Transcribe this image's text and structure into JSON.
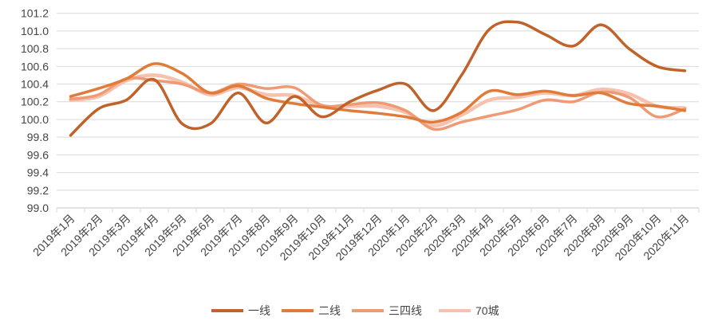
{
  "chart_data": {
    "type": "line",
    "smooth": true,
    "title": "",
    "xlabel": "",
    "ylabel": "",
    "ylim": [
      99.0,
      101.2
    ],
    "yticks": [
      "99.0",
      "99.2",
      "99.4",
      "99.6",
      "99.8",
      "100.0",
      "100.2",
      "100.4",
      "100.6",
      "100.8",
      "101.0",
      "101.2"
    ],
    "grid": true,
    "legend_position": "bottom",
    "categories": [
      "2019年1月",
      "2019年2月",
      "2019年3月",
      "2019年4月",
      "2019年5月",
      "2019年6月",
      "2019年7月",
      "2019年8月",
      "2019年9月",
      "2019年10月",
      "2019年11月",
      "2019年12月",
      "2020年1月",
      "2020年2月",
      "2020年3月",
      "2020年4月",
      "2020年5月",
      "2020年6月",
      "2020年7月",
      "2020年8月",
      "2020年9月",
      "2020年10月",
      "2020年11月"
    ],
    "series": [
      {
        "name": "一线",
        "color": "#C0632A",
        "values": [
          99.82,
          100.12,
          100.22,
          100.45,
          99.95,
          99.95,
          100.3,
          99.96,
          100.26,
          100.03,
          100.2,
          100.33,
          100.4,
          100.1,
          100.5,
          101.02,
          101.1,
          100.96,
          100.83,
          101.07,
          100.8,
          100.6,
          100.55
        ]
      },
      {
        "name": "二线",
        "color": "#E07B39",
        "values": [
          100.26,
          100.35,
          100.46,
          100.63,
          100.52,
          100.3,
          100.38,
          100.24,
          100.18,
          100.14,
          100.1,
          100.07,
          100.03,
          99.97,
          100.08,
          100.32,
          100.28,
          100.32,
          100.27,
          100.3,
          100.18,
          100.15,
          100.1
        ]
      },
      {
        "name": "三四线",
        "color": "#EE9A74",
        "values": [
          100.23,
          100.28,
          100.46,
          100.44,
          100.4,
          100.3,
          100.4,
          100.35,
          100.36,
          100.16,
          100.17,
          100.19,
          100.1,
          99.89,
          99.97,
          100.04,
          100.11,
          100.22,
          100.2,
          100.31,
          100.25,
          100.03,
          100.12
        ]
      },
      {
        "name": "70城",
        "color": "#F6C2AE",
        "values": [
          100.22,
          100.26,
          100.44,
          100.5,
          100.42,
          100.28,
          100.36,
          100.28,
          100.27,
          100.15,
          100.15,
          100.15,
          100.08,
          99.93,
          100.05,
          100.22,
          100.25,
          100.3,
          100.27,
          100.34,
          100.29,
          100.15,
          100.13
        ]
      }
    ]
  }
}
